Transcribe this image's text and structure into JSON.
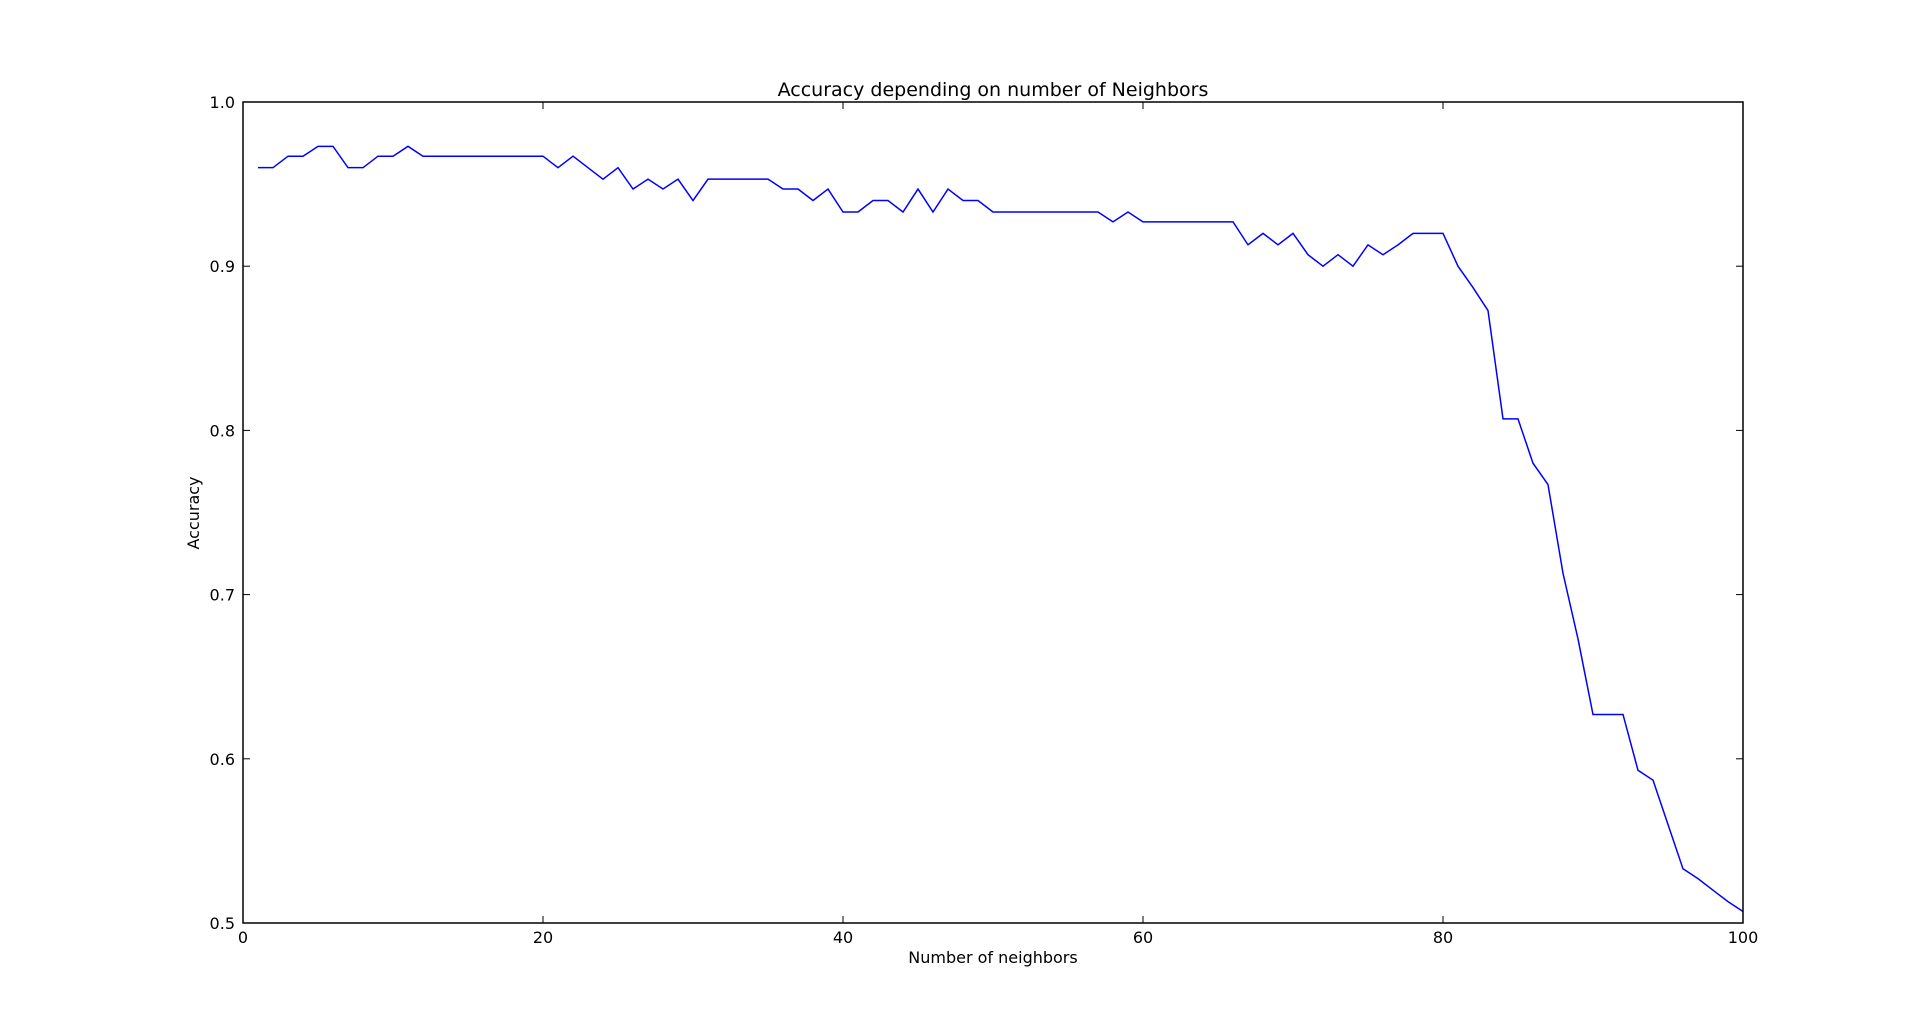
{
  "chart_data": {
    "type": "line",
    "title": "Accuracy depending on number of Neighbors",
    "xlabel": "Number of neighbors",
    "ylabel": "Accuracy",
    "xlim": [
      0,
      100
    ],
    "ylim": [
      0.5,
      1.0
    ],
    "xticks": [
      "0",
      "20",
      "40",
      "60",
      "80",
      "100"
    ],
    "xtick_values": [
      0,
      20,
      40,
      60,
      80,
      100
    ],
    "yticks": [
      "0.5",
      "0.6",
      "0.7",
      "0.8",
      "0.9",
      "1.0"
    ],
    "ytick_values": [
      0.5,
      0.6,
      0.7,
      0.8,
      0.9,
      1.0
    ],
    "grid": false,
    "line_color": "#0000ff",
    "series": [
      {
        "x": [
          1,
          2,
          3,
          4,
          5,
          6,
          7,
          8,
          9,
          10,
          11,
          12,
          13,
          14,
          15,
          16,
          17,
          18,
          19,
          20,
          21,
          22,
          23,
          24,
          25,
          26,
          27,
          28,
          29,
          30,
          31,
          32,
          33,
          34,
          35,
          36,
          37,
          38,
          39,
          40,
          41,
          42,
          43,
          44,
          45,
          46,
          47,
          48,
          49,
          50,
          51,
          52,
          53,
          54,
          55,
          56,
          57,
          58,
          59,
          60,
          61,
          62,
          63,
          64,
          65,
          66,
          67,
          68,
          69,
          70,
          71,
          72,
          73,
          74,
          75,
          76,
          77,
          78,
          79,
          80,
          81,
          82,
          83,
          84,
          85,
          86,
          87,
          88,
          89,
          90,
          91,
          92,
          93,
          94,
          95,
          96,
          97,
          98,
          99,
          100
        ],
        "values": [
          0.96,
          0.96,
          0.967,
          0.967,
          0.973,
          0.973,
          0.96,
          0.96,
          0.967,
          0.967,
          0.973,
          0.967,
          0.967,
          0.967,
          0.967,
          0.967,
          0.967,
          0.967,
          0.967,
          0.967,
          0.96,
          0.967,
          0.96,
          0.953,
          0.96,
          0.947,
          0.953,
          0.947,
          0.953,
          0.94,
          0.953,
          0.953,
          0.953,
          0.953,
          0.953,
          0.947,
          0.947,
          0.94,
          0.947,
          0.933,
          0.933,
          0.94,
          0.94,
          0.933,
          0.947,
          0.933,
          0.947,
          0.94,
          0.94,
          0.933,
          0.933,
          0.933,
          0.933,
          0.933,
          0.933,
          0.933,
          0.933,
          0.927,
          0.933,
          0.927,
          0.927,
          0.927,
          0.927,
          0.927,
          0.927,
          0.927,
          0.913,
          0.92,
          0.913,
          0.92,
          0.907,
          0.9,
          0.907,
          0.9,
          0.913,
          0.907,
          0.913,
          0.92,
          0.92,
          0.92,
          0.9,
          0.887,
          0.873,
          0.807,
          0.807,
          0.78,
          0.767,
          0.713,
          0.673,
          0.627,
          0.627,
          0.627,
          0.593,
          0.587,
          0.56,
          0.533,
          0.527,
          0.52,
          0.513,
          0.507
        ]
      }
    ]
  }
}
